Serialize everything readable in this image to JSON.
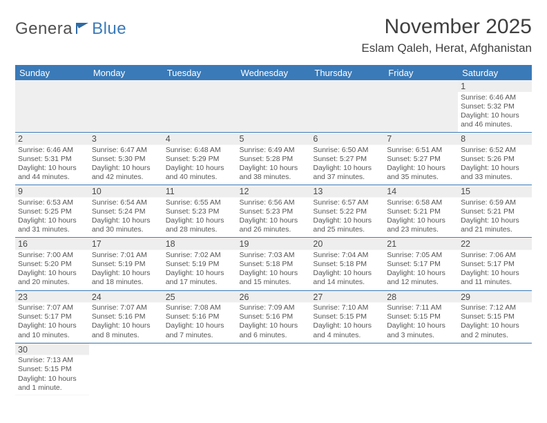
{
  "logo": {
    "text1": "Genera",
    "text2": "Blue"
  },
  "title": "November 2025",
  "location": "Eslam Qaleh, Herat, Afghanistan",
  "colors": {
    "header_bg": "#3a7ab8",
    "header_fg": "#ffffff",
    "stripe": "#eeeeee",
    "rule": "#3a7ab8",
    "text": "#4a4a4a"
  },
  "weekdays": [
    "Sunday",
    "Monday",
    "Tuesday",
    "Wednesday",
    "Thursday",
    "Friday",
    "Saturday"
  ],
  "grid": [
    [
      null,
      null,
      null,
      null,
      null,
      null,
      {
        "n": "1",
        "sunrise": "6:46 AM",
        "sunset": "5:32 PM",
        "daylight": "10 hours and 46 minutes."
      }
    ],
    [
      {
        "n": "2",
        "sunrise": "6:46 AM",
        "sunset": "5:31 PM",
        "daylight": "10 hours and 44 minutes."
      },
      {
        "n": "3",
        "sunrise": "6:47 AM",
        "sunset": "5:30 PM",
        "daylight": "10 hours and 42 minutes."
      },
      {
        "n": "4",
        "sunrise": "6:48 AM",
        "sunset": "5:29 PM",
        "daylight": "10 hours and 40 minutes."
      },
      {
        "n": "5",
        "sunrise": "6:49 AM",
        "sunset": "5:28 PM",
        "daylight": "10 hours and 38 minutes."
      },
      {
        "n": "6",
        "sunrise": "6:50 AM",
        "sunset": "5:27 PM",
        "daylight": "10 hours and 37 minutes."
      },
      {
        "n": "7",
        "sunrise": "6:51 AM",
        "sunset": "5:27 PM",
        "daylight": "10 hours and 35 minutes."
      },
      {
        "n": "8",
        "sunrise": "6:52 AM",
        "sunset": "5:26 PM",
        "daylight": "10 hours and 33 minutes."
      }
    ],
    [
      {
        "n": "9",
        "sunrise": "6:53 AM",
        "sunset": "5:25 PM",
        "daylight": "10 hours and 31 minutes."
      },
      {
        "n": "10",
        "sunrise": "6:54 AM",
        "sunset": "5:24 PM",
        "daylight": "10 hours and 30 minutes."
      },
      {
        "n": "11",
        "sunrise": "6:55 AM",
        "sunset": "5:23 PM",
        "daylight": "10 hours and 28 minutes."
      },
      {
        "n": "12",
        "sunrise": "6:56 AM",
        "sunset": "5:23 PM",
        "daylight": "10 hours and 26 minutes."
      },
      {
        "n": "13",
        "sunrise": "6:57 AM",
        "sunset": "5:22 PM",
        "daylight": "10 hours and 25 minutes."
      },
      {
        "n": "14",
        "sunrise": "6:58 AM",
        "sunset": "5:21 PM",
        "daylight": "10 hours and 23 minutes."
      },
      {
        "n": "15",
        "sunrise": "6:59 AM",
        "sunset": "5:21 PM",
        "daylight": "10 hours and 21 minutes."
      }
    ],
    [
      {
        "n": "16",
        "sunrise": "7:00 AM",
        "sunset": "5:20 PM",
        "daylight": "10 hours and 20 minutes."
      },
      {
        "n": "17",
        "sunrise": "7:01 AM",
        "sunset": "5:19 PM",
        "daylight": "10 hours and 18 minutes."
      },
      {
        "n": "18",
        "sunrise": "7:02 AM",
        "sunset": "5:19 PM",
        "daylight": "10 hours and 17 minutes."
      },
      {
        "n": "19",
        "sunrise": "7:03 AM",
        "sunset": "5:18 PM",
        "daylight": "10 hours and 15 minutes."
      },
      {
        "n": "20",
        "sunrise": "7:04 AM",
        "sunset": "5:18 PM",
        "daylight": "10 hours and 14 minutes."
      },
      {
        "n": "21",
        "sunrise": "7:05 AM",
        "sunset": "5:17 PM",
        "daylight": "10 hours and 12 minutes."
      },
      {
        "n": "22",
        "sunrise": "7:06 AM",
        "sunset": "5:17 PM",
        "daylight": "10 hours and 11 minutes."
      }
    ],
    [
      {
        "n": "23",
        "sunrise": "7:07 AM",
        "sunset": "5:17 PM",
        "daylight": "10 hours and 10 minutes."
      },
      {
        "n": "24",
        "sunrise": "7:07 AM",
        "sunset": "5:16 PM",
        "daylight": "10 hours and 8 minutes."
      },
      {
        "n": "25",
        "sunrise": "7:08 AM",
        "sunset": "5:16 PM",
        "daylight": "10 hours and 7 minutes."
      },
      {
        "n": "26",
        "sunrise": "7:09 AM",
        "sunset": "5:16 PM",
        "daylight": "10 hours and 6 minutes."
      },
      {
        "n": "27",
        "sunrise": "7:10 AM",
        "sunset": "5:15 PM",
        "daylight": "10 hours and 4 minutes."
      },
      {
        "n": "28",
        "sunrise": "7:11 AM",
        "sunset": "5:15 PM",
        "daylight": "10 hours and 3 minutes."
      },
      {
        "n": "29",
        "sunrise": "7:12 AM",
        "sunset": "5:15 PM",
        "daylight": "10 hours and 2 minutes."
      }
    ],
    [
      {
        "n": "30",
        "sunrise": "7:13 AM",
        "sunset": "5:15 PM",
        "daylight": "10 hours and 1 minute."
      },
      null,
      null,
      null,
      null,
      null,
      null
    ]
  ],
  "labels": {
    "sunrise": "Sunrise: ",
    "sunset": "Sunset: ",
    "daylight": "Daylight: "
  }
}
